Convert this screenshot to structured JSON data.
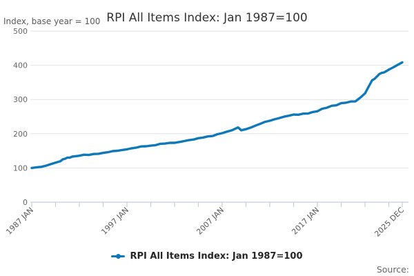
{
  "header": {
    "title": "RPI All Items Index: Jan 1987=100",
    "subtitle": "Index, base year = 100"
  },
  "legend": {
    "label": "RPI All Items Index: Jan 1987=100"
  },
  "footer": {
    "source_label": "Source:"
  },
  "colors": {
    "line": "#0f78b8",
    "axis": "#c4cede",
    "grid": "#e2e2e2",
    "tick_label": "#666666",
    "x_label": "#595959",
    "title": "#333333"
  },
  "chart_data": {
    "type": "line",
    "title": "RPI All Items Index: Jan 1987=100",
    "ylabel": "Index, base year = 100",
    "xlabel": "",
    "ylim": [
      0,
      500
    ],
    "yticks": [
      0,
      100,
      200,
      300,
      400,
      500
    ],
    "grid": "horizontal-only",
    "legend_position": "bottom-center",
    "x_start": "1987-01",
    "x_end": "2025-12",
    "x_minor_tick_interval_months": 30,
    "x_major_ticks": [
      {
        "date": "1987-01",
        "label": "1987 JAN"
      },
      {
        "date": "1997-01",
        "label": "1997 JAN"
      },
      {
        "date": "2007-01",
        "label": "2007 JAN"
      },
      {
        "date": "2017-01",
        "label": "2017 JAN"
      },
      {
        "date": "2025-12",
        "label": "2025 DEC"
      }
    ],
    "series": [
      {
        "name": "RPI All Items Index: Jan 1987=100",
        "color": "#0f78b8",
        "points": [
          [
            "1987-01",
            100.0
          ],
          [
            "1987-07",
            101.8
          ],
          [
            "1988-01",
            103.3
          ],
          [
            "1988-07",
            106.7
          ],
          [
            "1989-01",
            111.0
          ],
          [
            "1989-07",
            115.5
          ],
          [
            "1990-01",
            119.5
          ],
          [
            "1990-04",
            125.1
          ],
          [
            "1990-07",
            126.8
          ],
          [
            "1990-10",
            130.3
          ],
          [
            "1991-01",
            130.2
          ],
          [
            "1991-04",
            133.1
          ],
          [
            "1991-07",
            133.8
          ],
          [
            "1992-01",
            135.6
          ],
          [
            "1992-07",
            138.8
          ],
          [
            "1993-01",
            137.9
          ],
          [
            "1993-07",
            140.7
          ],
          [
            "1994-01",
            141.3
          ],
          [
            "1994-07",
            144.0
          ],
          [
            "1995-01",
            146.0
          ],
          [
            "1995-07",
            149.1
          ],
          [
            "1996-01",
            150.2
          ],
          [
            "1996-07",
            152.4
          ],
          [
            "1997-01",
            154.4
          ],
          [
            "1997-07",
            157.5
          ],
          [
            "1998-01",
            159.5
          ],
          [
            "1998-07",
            163.0
          ],
          [
            "1999-01",
            163.4
          ],
          [
            "1999-07",
            165.1
          ],
          [
            "2000-01",
            166.6
          ],
          [
            "2000-07",
            170.5
          ],
          [
            "2001-01",
            171.1
          ],
          [
            "2001-07",
            173.3
          ],
          [
            "2002-01",
            173.3
          ],
          [
            "2002-07",
            175.9
          ],
          [
            "2003-01",
            178.4
          ],
          [
            "2003-07",
            181.3
          ],
          [
            "2004-01",
            183.1
          ],
          [
            "2004-07",
            186.8
          ],
          [
            "2005-01",
            188.9
          ],
          [
            "2005-07",
            192.2
          ],
          [
            "2006-01",
            193.4
          ],
          [
            "2006-07",
            198.5
          ],
          [
            "2007-01",
            201.6
          ],
          [
            "2007-07",
            206.1
          ],
          [
            "2008-01",
            209.8
          ],
          [
            "2008-09",
            218.4
          ],
          [
            "2009-01",
            210.1
          ],
          [
            "2009-07",
            213.4
          ],
          [
            "2010-01",
            217.9
          ],
          [
            "2010-07",
            223.6
          ],
          [
            "2011-01",
            229.0
          ],
          [
            "2011-07",
            234.7
          ],
          [
            "2012-01",
            238.0
          ],
          [
            "2012-07",
            242.1
          ],
          [
            "2013-01",
            245.8
          ],
          [
            "2013-07",
            249.7
          ],
          [
            "2014-01",
            252.6
          ],
          [
            "2014-07",
            256.0
          ],
          [
            "2015-01",
            255.4
          ],
          [
            "2015-07",
            258.6
          ],
          [
            "2016-01",
            258.8
          ],
          [
            "2016-07",
            263.4
          ],
          [
            "2017-01",
            265.5
          ],
          [
            "2017-07",
            272.9
          ],
          [
            "2018-01",
            276.0
          ],
          [
            "2018-07",
            281.7
          ],
          [
            "2019-01",
            283.0
          ],
          [
            "2019-07",
            289.5
          ],
          [
            "2020-01",
            290.6
          ],
          [
            "2020-07",
            294.2
          ],
          [
            "2021-01",
            294.6
          ],
          [
            "2021-07",
            305.5
          ],
          [
            "2022-01",
            317.7
          ],
          [
            "2022-07",
            343.8
          ],
          [
            "2022-10",
            356.2
          ],
          [
            "2023-01",
            360.3
          ],
          [
            "2023-07",
            374.2
          ],
          [
            "2023-10",
            377.8
          ],
          [
            "2024-01",
            379.0
          ],
          [
            "2024-07",
            387.3
          ],
          [
            "2025-01",
            394.3
          ],
          [
            "2025-07",
            402.2
          ],
          [
            "2025-12",
            408.5
          ]
        ]
      }
    ]
  }
}
